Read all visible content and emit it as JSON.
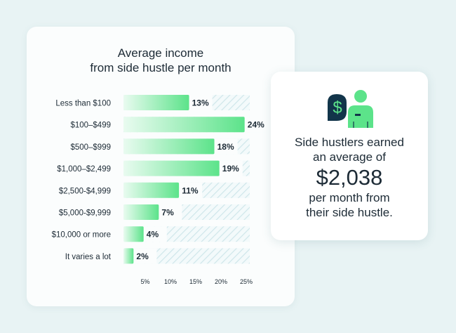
{
  "colors": {
    "background": "#e8f3f4",
    "bar_green": "#5ce38a",
    "bar_green_light": "#e9fbf0",
    "track_hatch": "#cfe6ea",
    "icon_navy": "#12354a",
    "icon_green": "#5ce38a"
  },
  "stat_card": {
    "line1": "Side hustlers earned",
    "line2": "an average of",
    "amount": "$2,038",
    "line3": "per month from",
    "line4": "their side hustle.",
    "icon": "dollar-person-icon"
  },
  "chart_data": {
    "type": "bar",
    "orientation": "horizontal",
    "title_lines": [
      "Average income",
      "from side hustle per month"
    ],
    "categories": [
      "Less than $100",
      "$100–$499",
      "$500–$999",
      "$1,000–$2,499",
      "$2,500-$4,999",
      "$5,000-$9,999",
      "$10,000 or more",
      "It varies a lot"
    ],
    "values": [
      13,
      24,
      18,
      19,
      11,
      7,
      4,
      2
    ],
    "value_labels": [
      "13%",
      "24%",
      "18%",
      "19%",
      "11%",
      "7%",
      "4%",
      "2%"
    ],
    "xlim": [
      0,
      25
    ],
    "xticks": [
      5,
      10,
      15,
      20,
      25
    ],
    "xtick_labels": [
      "5%",
      "10%",
      "15%",
      "20%",
      "25%"
    ],
    "xlabel": "",
    "ylabel": "",
    "grid": false,
    "legend": "none"
  }
}
